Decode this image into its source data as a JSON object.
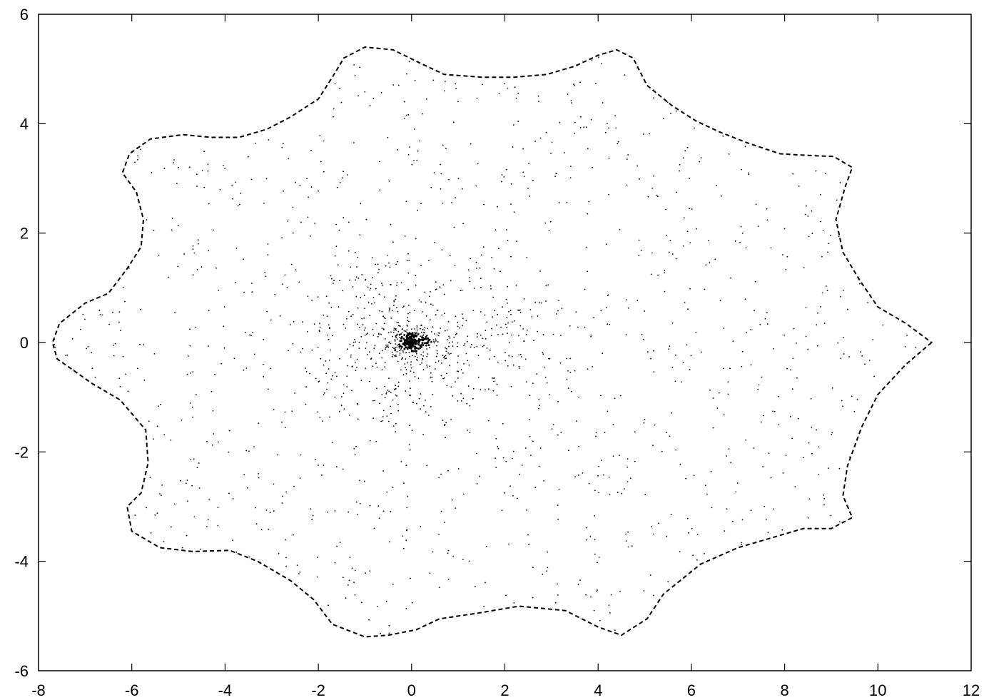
{
  "chart_data": {
    "type": "scatter",
    "title": "",
    "xlabel": "",
    "ylabel": "",
    "xlim": [
      -8,
      12
    ],
    "ylim": [
      -6,
      6
    ],
    "x_ticks": [
      -8,
      -6,
      -4,
      -2,
      0,
      2,
      4,
      6,
      8,
      10,
      12
    ],
    "y_ticks": [
      -6,
      -4,
      -2,
      0,
      2,
      4,
      6
    ],
    "x_tick_labels": [
      "-8",
      "-6",
      "-4",
      "-2",
      "0",
      "2",
      "4",
      "6",
      "8",
      "10",
      "12"
    ],
    "y_tick_labels": [
      "-6",
      "-4",
      "-2",
      "0",
      "2",
      "4",
      "6"
    ],
    "grid": false,
    "legend": "none",
    "series": [
      {
        "style": "dashed-line",
        "color": "#000000",
        "points": [
          [
            11.15,
            0.0
          ],
          [
            10.6,
            -0.4
          ],
          [
            10.0,
            -0.95
          ],
          [
            9.65,
            -1.55
          ],
          [
            9.35,
            -2.25
          ],
          [
            9.25,
            -2.8
          ],
          [
            9.45,
            -3.2
          ],
          [
            9.0,
            -3.4
          ],
          [
            8.4,
            -3.4
          ],
          [
            7.8,
            -3.55
          ],
          [
            7.0,
            -3.75
          ],
          [
            6.2,
            -4.05
          ],
          [
            5.4,
            -4.6
          ],
          [
            5.05,
            -5.05
          ],
          [
            4.5,
            -5.35
          ],
          [
            4.0,
            -5.2
          ],
          [
            3.3,
            -4.9
          ],
          [
            2.3,
            -4.82
          ],
          [
            1.4,
            -4.95
          ],
          [
            0.6,
            -5.05
          ],
          [
            0.1,
            -5.25
          ],
          [
            -0.5,
            -5.35
          ],
          [
            -1.0,
            -5.38
          ],
          [
            -1.7,
            -5.15
          ],
          [
            -2.1,
            -4.7
          ],
          [
            -2.6,
            -4.35
          ],
          [
            -3.3,
            -4.0
          ],
          [
            -3.9,
            -3.8
          ],
          [
            -4.7,
            -3.82
          ],
          [
            -5.4,
            -3.75
          ],
          [
            -6.0,
            -3.45
          ],
          [
            -6.1,
            -3.0
          ],
          [
            -5.8,
            -2.75
          ],
          [
            -5.65,
            -2.2
          ],
          [
            -5.7,
            -1.6
          ],
          [
            -6.25,
            -1.05
          ],
          [
            -6.85,
            -0.75
          ],
          [
            -7.6,
            -0.3
          ],
          [
            -7.7,
            0.0
          ],
          [
            -7.55,
            0.35
          ],
          [
            -7.0,
            0.72
          ],
          [
            -6.5,
            0.9
          ],
          [
            -6.1,
            1.35
          ],
          [
            -5.8,
            1.75
          ],
          [
            -5.75,
            2.25
          ],
          [
            -5.9,
            2.75
          ],
          [
            -6.2,
            3.1
          ],
          [
            -6.05,
            3.45
          ],
          [
            -5.6,
            3.72
          ],
          [
            -4.9,
            3.8
          ],
          [
            -4.3,
            3.75
          ],
          [
            -3.7,
            3.75
          ],
          [
            -3.1,
            3.9
          ],
          [
            -2.6,
            4.12
          ],
          [
            -2.0,
            4.45
          ],
          [
            -1.7,
            4.85
          ],
          [
            -1.45,
            5.2
          ],
          [
            -1.0,
            5.4
          ],
          [
            -0.4,
            5.35
          ],
          [
            0.2,
            5.1
          ],
          [
            0.7,
            4.9
          ],
          [
            1.5,
            4.85
          ],
          [
            2.2,
            4.85
          ],
          [
            2.9,
            4.9
          ],
          [
            3.5,
            5.05
          ],
          [
            4.0,
            5.25
          ],
          [
            4.4,
            5.35
          ],
          [
            4.75,
            5.2
          ],
          [
            5.05,
            4.7
          ],
          [
            5.6,
            4.32
          ],
          [
            6.1,
            4.05
          ],
          [
            6.6,
            3.85
          ],
          [
            7.2,
            3.65
          ],
          [
            7.9,
            3.45
          ],
          [
            8.5,
            3.42
          ],
          [
            9.05,
            3.4
          ],
          [
            9.45,
            3.2
          ],
          [
            9.3,
            2.85
          ],
          [
            9.1,
            2.25
          ],
          [
            9.25,
            1.65
          ],
          [
            9.6,
            1.15
          ],
          [
            10.0,
            0.65
          ],
          [
            10.6,
            0.35
          ],
          [
            11.15,
            0.0
          ]
        ]
      }
    ]
  }
}
